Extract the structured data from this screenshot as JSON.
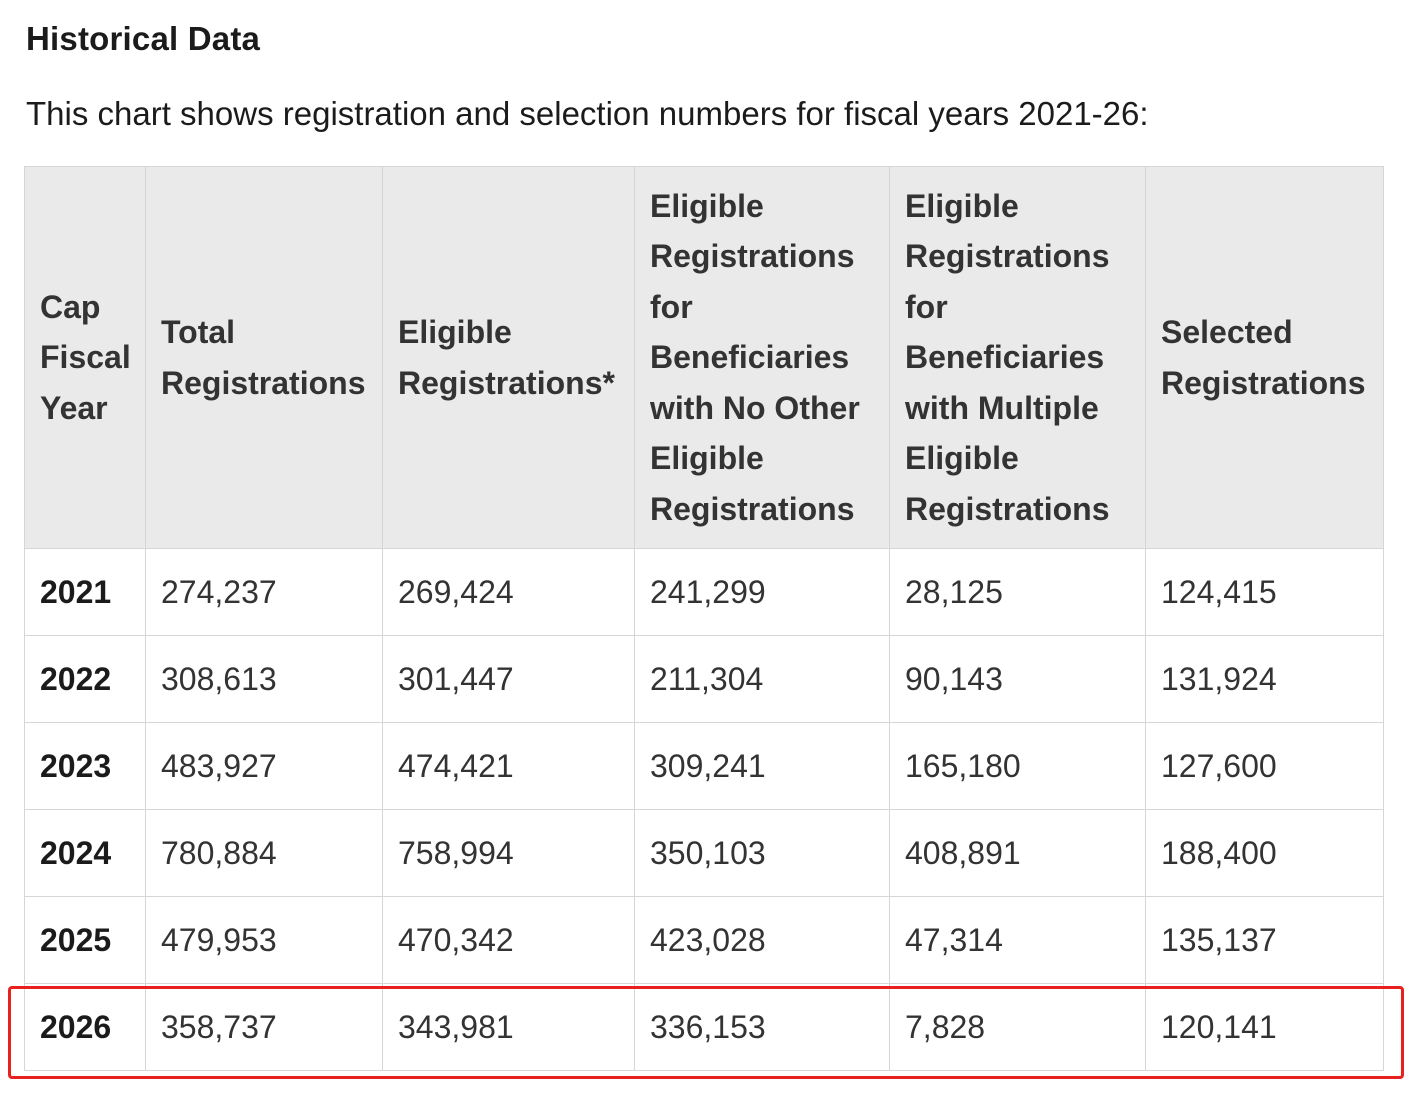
{
  "heading": "Historical Data",
  "intro": "This chart shows registration and selection numbers for fiscal years 2021-26:",
  "table": {
    "headers": [
      "Cap Fiscal Year",
      "Total Registrations",
      "Eligible Registrations*",
      "Eligible Registrations for Beneficiaries with No Other Eligible Registrations",
      "Eligible Registrations for Beneficiaries with Multiple Eligible Registrations",
      "Selected Registrations"
    ],
    "rows": [
      [
        "2021",
        "274,237",
        "269,424",
        "241,299",
        "28,125",
        "124,415"
      ],
      [
        "2022",
        "308,613",
        "301,447",
        "211,304",
        "90,143",
        "131,924"
      ],
      [
        "2023",
        "483,927",
        "474,421",
        "309,241",
        "165,180",
        "127,600"
      ],
      [
        "2024",
        "780,884",
        "758,994",
        "350,103",
        "408,891",
        "188,400"
      ],
      [
        "2025",
        "479,953",
        "470,342",
        "423,028",
        "47,314",
        "135,137"
      ],
      [
        "2026",
        "358,737",
        "343,981",
        "336,153",
        "7,828",
        "120,141"
      ]
    ]
  },
  "highlight": {
    "row_year": "2026",
    "color": "#e8201e"
  }
}
